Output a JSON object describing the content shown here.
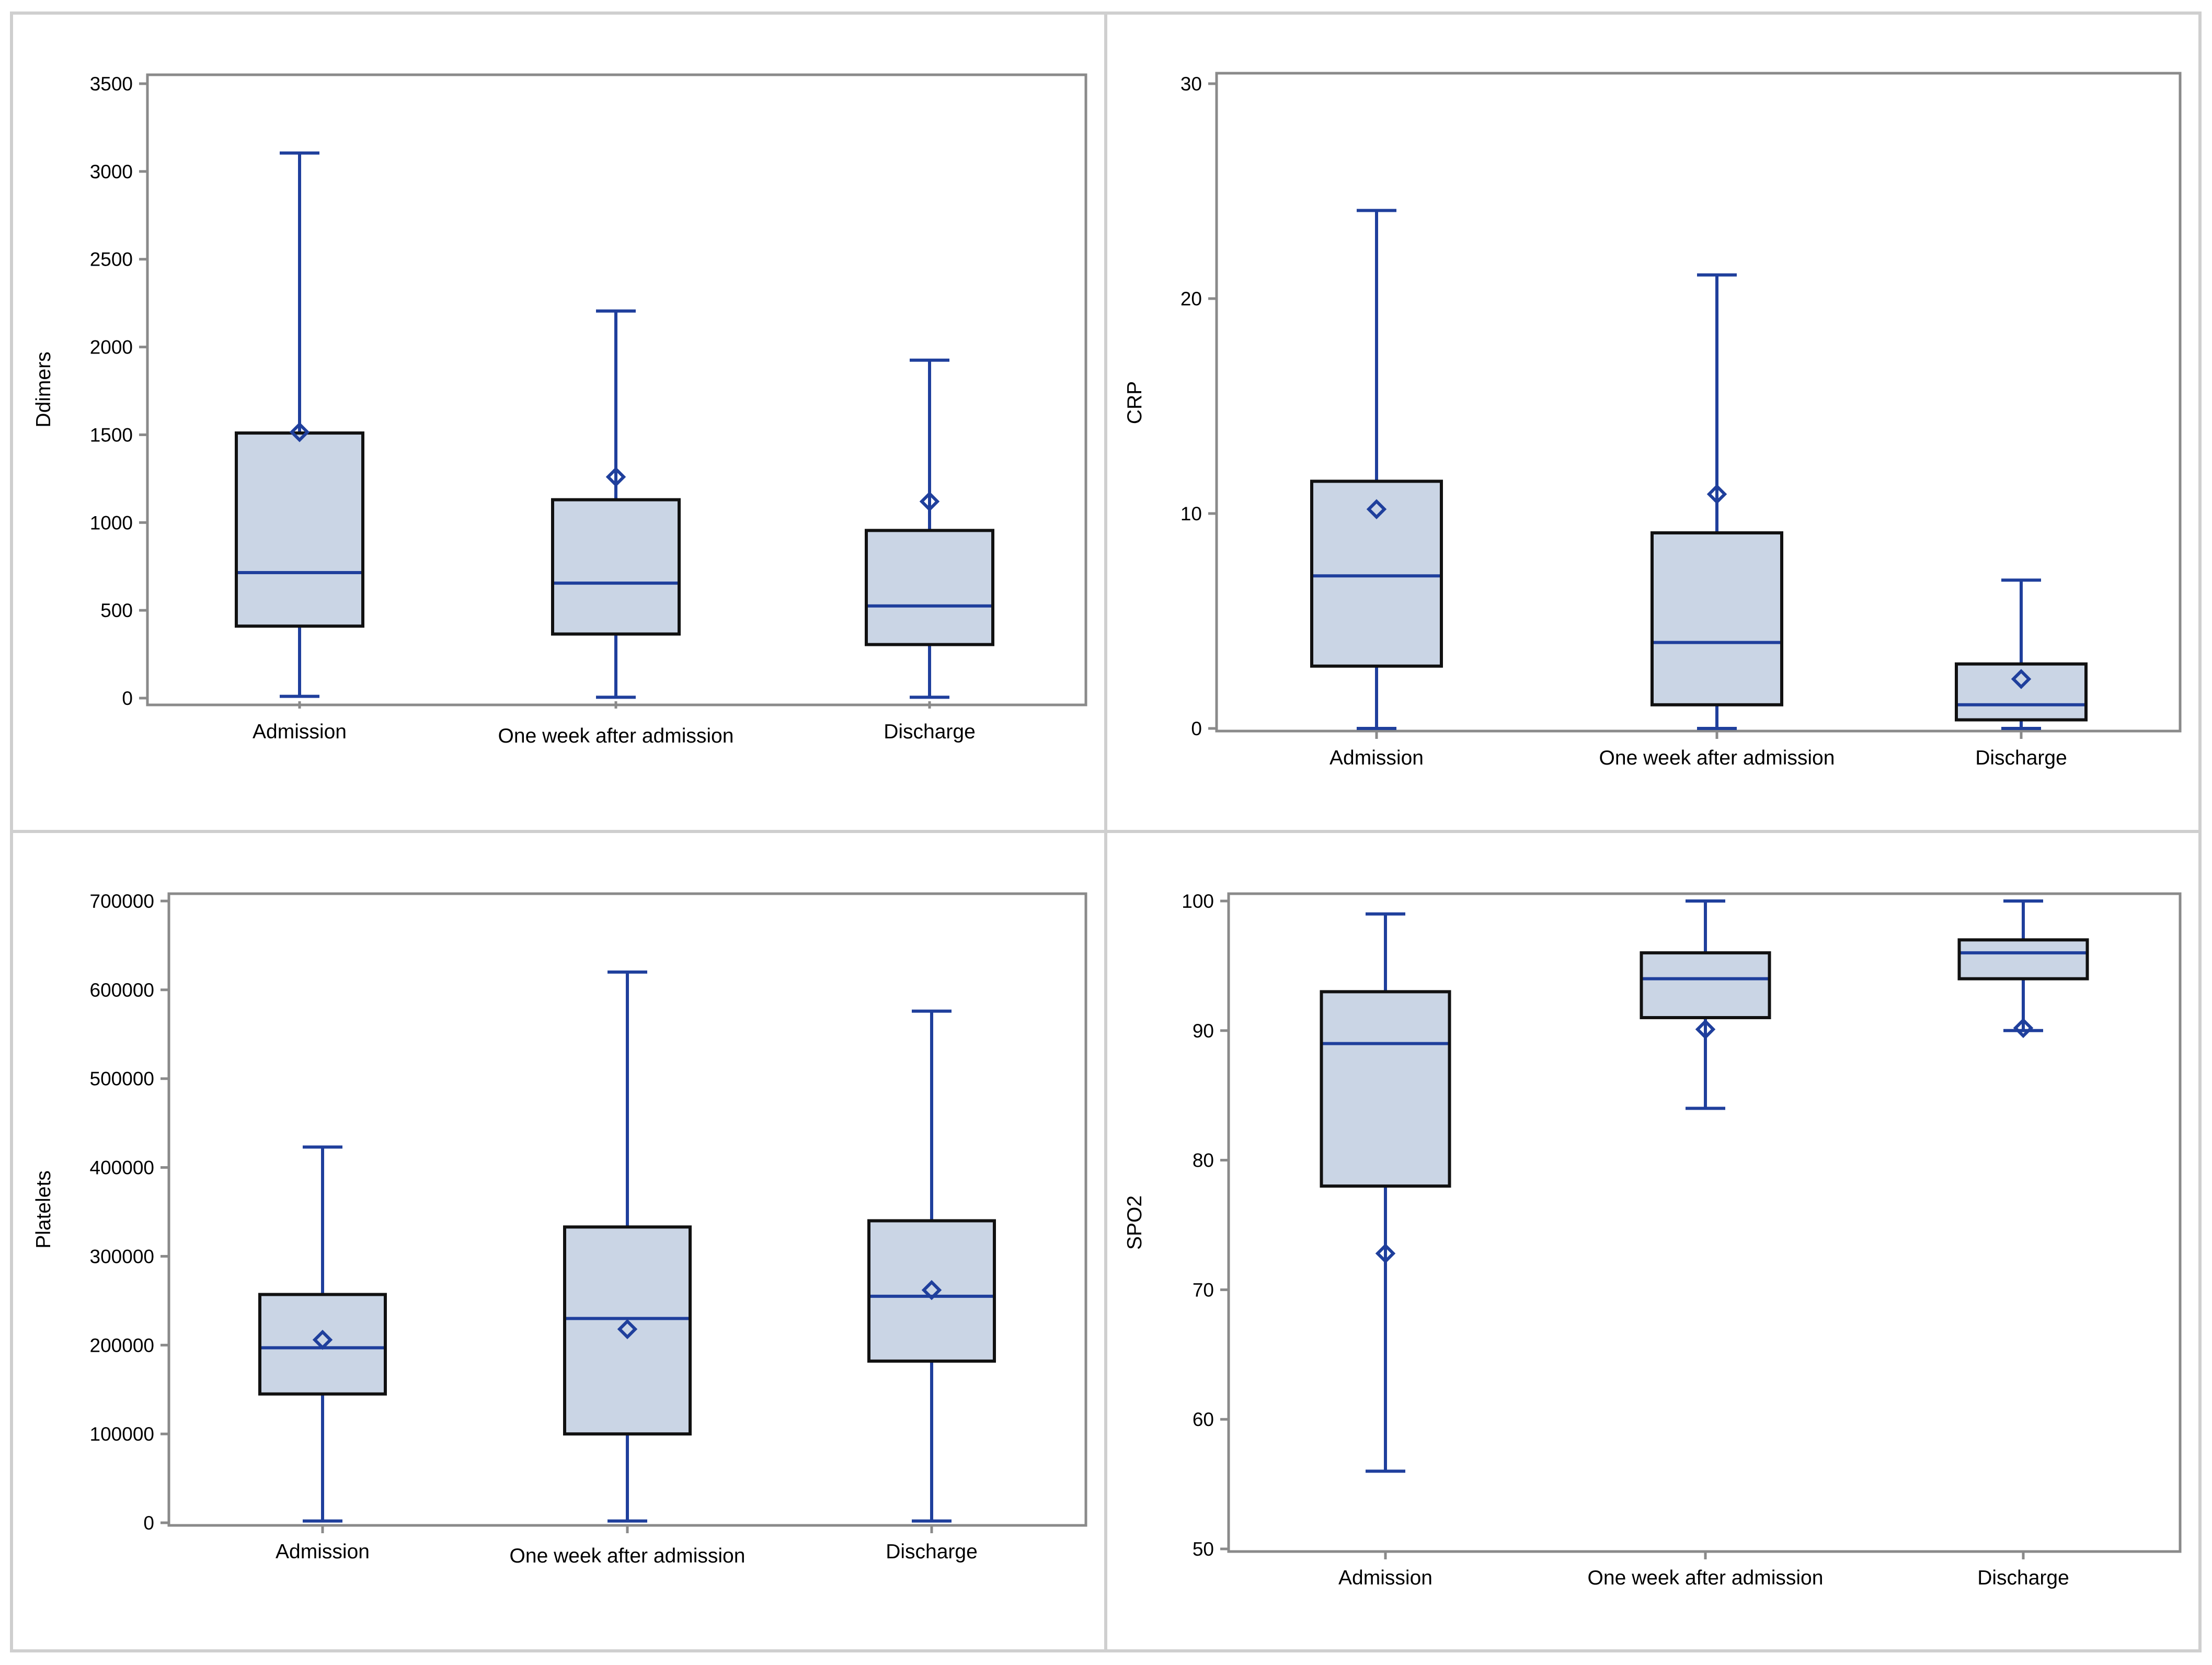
{
  "colors": {
    "box_fill": "#cad5e5",
    "box_outline": "#111111",
    "whisker": "#1f3f9c",
    "axis": "#8a8a8a",
    "panel_border": "#cfcfcf"
  },
  "chart_data": [
    {
      "type": "box",
      "title": "",
      "xlabel": "",
      "ylabel": "Ddimers",
      "ylim": [
        0,
        3500
      ],
      "yticks": [
        0,
        500,
        1000,
        1500,
        2000,
        2500,
        3000,
        3500
      ],
      "ytick_labels": [
        "0",
        "500",
        "1000",
        "1500",
        "2000",
        "2500",
        "3000",
        "3500"
      ],
      "categories": [
        "Admission",
        "One week after admission",
        "Discharge"
      ],
      "boxes": [
        {
          "category": "Admission",
          "min": 10,
          "q1": 410,
          "median": 715,
          "q3": 1510,
          "max": 3105,
          "mean": 1515
        },
        {
          "category": "One week after admission",
          "min": 5,
          "q1": 365,
          "median": 655,
          "q3": 1130,
          "max": 2205,
          "mean": 1260
        },
        {
          "category": "Discharge",
          "min": 5,
          "q1": 305,
          "median": 525,
          "q3": 955,
          "max": 1925,
          "mean": 1120
        }
      ]
    },
    {
      "type": "box",
      "title": "",
      "xlabel": "",
      "ylabel": "CRP",
      "ylim": [
        0,
        30
      ],
      "yticks": [
        0,
        10,
        20,
        30
      ],
      "ytick_labels": [
        "0",
        "10",
        "20",
        "30"
      ],
      "categories": [
        "Admission",
        "One week after admission",
        "Discharge"
      ],
      "boxes": [
        {
          "category": "Admission",
          "min": 0,
          "q1": 2.9,
          "median": 7.1,
          "q3": 11.5,
          "max": 24.1,
          "mean": 10.2
        },
        {
          "category": "One week after admission",
          "min": 0,
          "q1": 1.1,
          "median": 4.0,
          "q3": 9.1,
          "max": 21.1,
          "mean": 10.9
        },
        {
          "category": "Discharge",
          "min": 0,
          "q1": 0.4,
          "median": 1.1,
          "q3": 3.0,
          "max": 6.9,
          "mean": 2.3
        }
      ]
    },
    {
      "type": "box",
      "title": "",
      "xlabel": "",
      "ylabel": "Platelets",
      "ylim": [
        0,
        700000
      ],
      "yticks": [
        0,
        100000,
        200000,
        300000,
        400000,
        500000,
        600000,
        700000
      ],
      "ytick_labels": [
        "0",
        "100000",
        "200000",
        "300000",
        "400000",
        "500000",
        "600000",
        "700000"
      ],
      "categories": [
        "Admission",
        "One week after admission",
        "Discharge"
      ],
      "boxes": [
        {
          "category": "Admission",
          "min": 2000,
          "q1": 145000,
          "median": 197000,
          "q3": 257000,
          "max": 423000,
          "mean": 206000
        },
        {
          "category": "One week after admission",
          "min": 2000,
          "q1": 100000,
          "median": 230000,
          "q3": 333000,
          "max": 620000,
          "mean": 218000
        },
        {
          "category": "Discharge",
          "min": 2000,
          "q1": 182000,
          "median": 255000,
          "q3": 340000,
          "max": 576000,
          "mean": 262000
        }
      ]
    },
    {
      "type": "box",
      "title": "",
      "xlabel": "",
      "ylabel": "SPO2",
      "ylim": [
        50,
        100
      ],
      "yticks": [
        50,
        60,
        70,
        80,
        90,
        100
      ],
      "ytick_labels": [
        "50",
        "60",
        "70",
        "80",
        "90",
        "100"
      ],
      "categories": [
        "Admission",
        "One week after admission",
        "Discharge"
      ],
      "boxes": [
        {
          "category": "Admission",
          "min": 56,
          "q1": 78,
          "median": 89,
          "q3": 93,
          "max": 99,
          "mean": 72.8
        },
        {
          "category": "One week after admission",
          "min": 84,
          "q1": 91,
          "median": 94,
          "q3": 96,
          "max": 100,
          "mean": 90.1
        },
        {
          "category": "Discharge",
          "min": 90,
          "q1": 94,
          "median": 96,
          "q3": 97,
          "max": 100,
          "mean": 90.2
        }
      ]
    }
  ]
}
